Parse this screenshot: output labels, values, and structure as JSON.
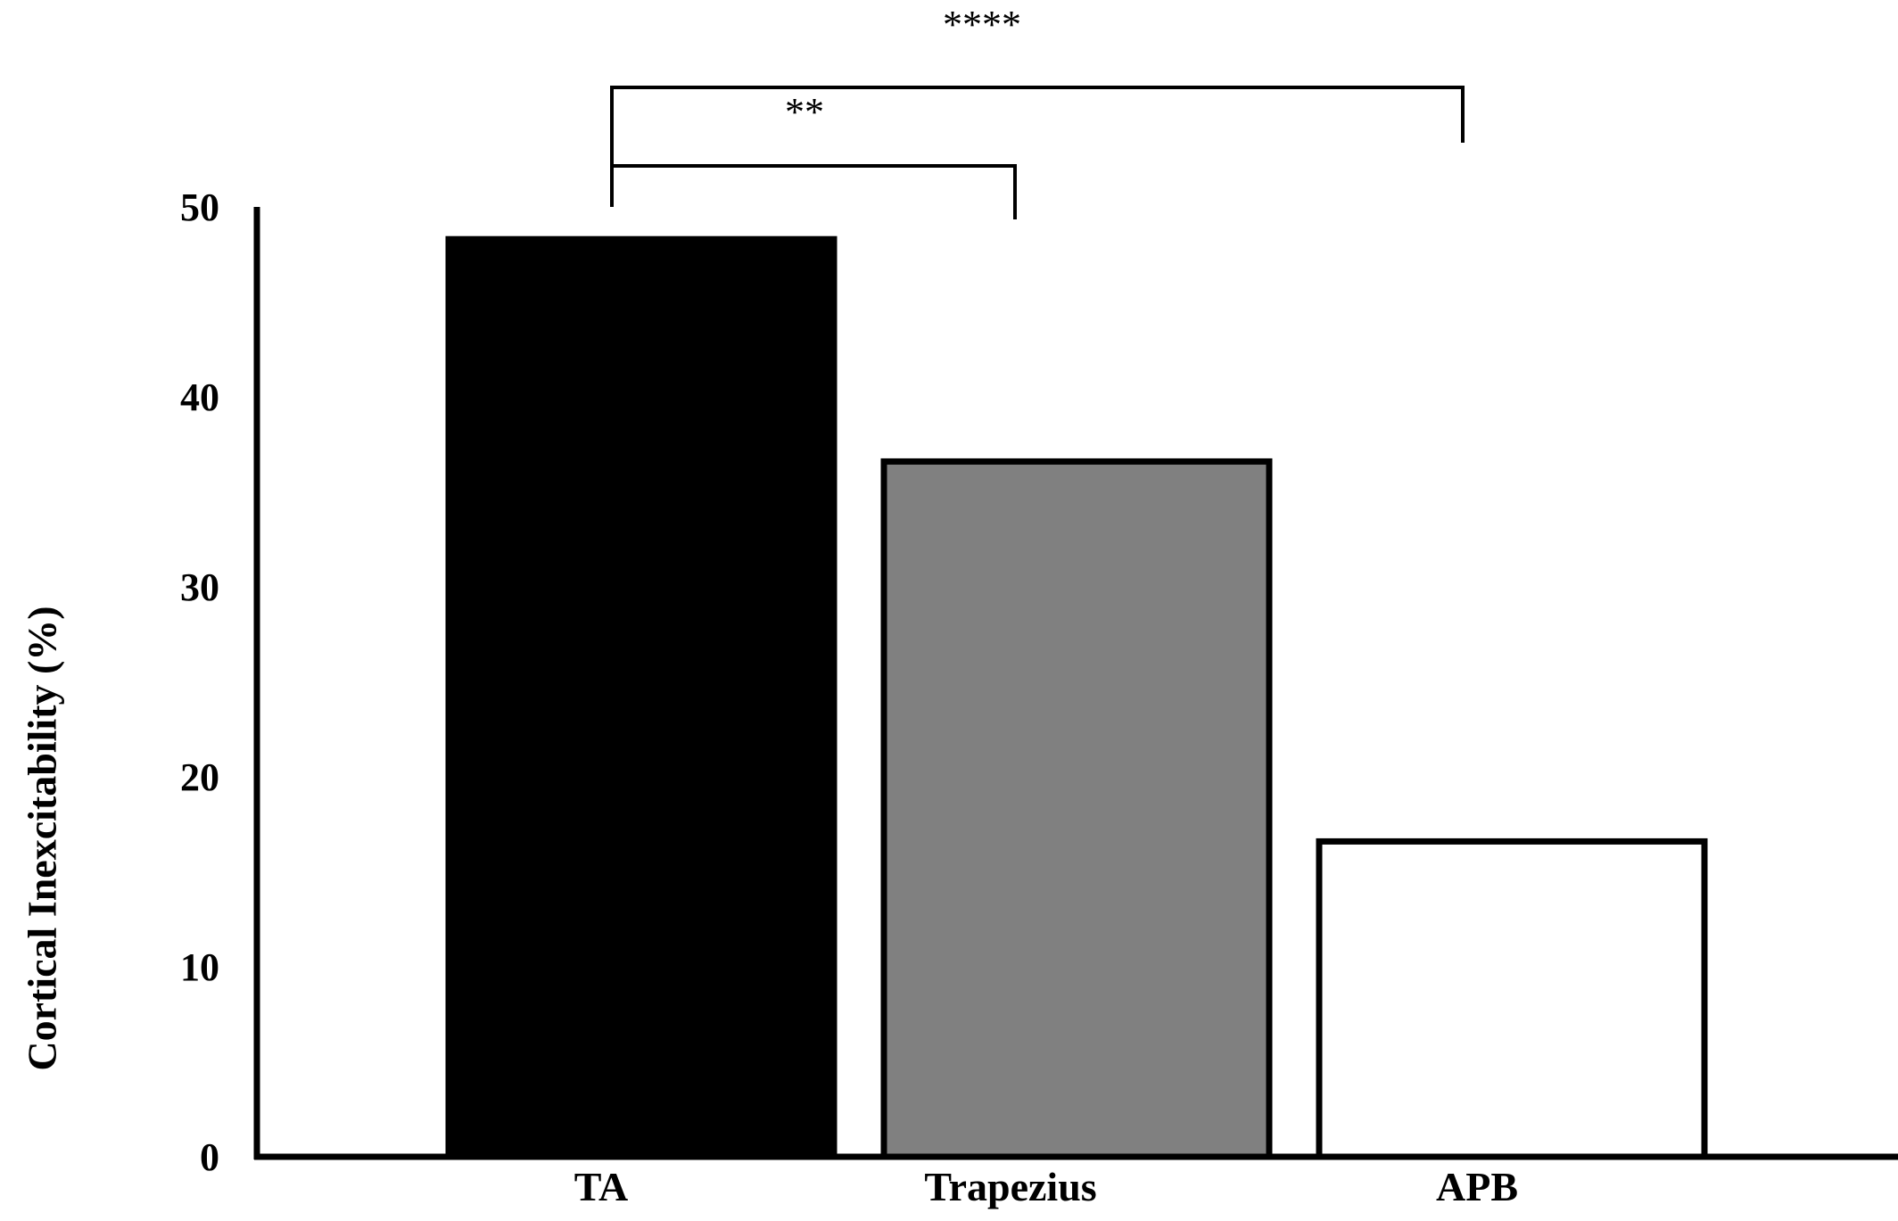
{
  "chart_data": {
    "type": "bar",
    "title": "",
    "xlabel": "",
    "ylabel": "Cortical Inexcitability (%)",
    "ylim": [
      0,
      50
    ],
    "yticks": [
      0,
      10,
      20,
      30,
      40,
      50
    ],
    "grid": false,
    "legend": "none",
    "categories": [
      "TA",
      "Trapezius",
      "APB"
    ],
    "values": [
      48.3,
      36.6,
      16.6
    ],
    "bar_colors": [
      "#000000",
      "#808080",
      "#ffffff"
    ],
    "bar_edge_color": "#000000",
    "significance": [
      {
        "from": "TA",
        "to": "Trapezius",
        "label": "**"
      },
      {
        "from": "TA",
        "to": "APB",
        "label": "****"
      }
    ]
  }
}
